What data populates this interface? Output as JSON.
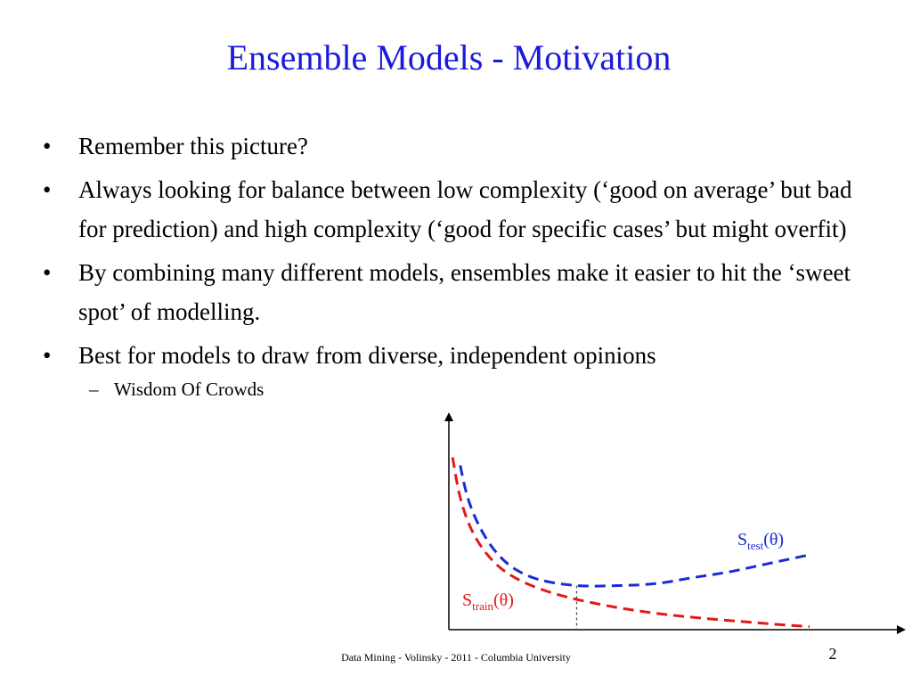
{
  "slide": {
    "title": "Ensemble Models - Motivation",
    "bullets": [
      {
        "text": "Remember this picture?"
      },
      {
        "text": "Always looking for balance between low complexity (‘good on average’ but bad for prediction) and high complexity (‘good for specific cases’ but might overfit)"
      },
      {
        "text": "By combining many different models, ensembles make it easier to hit the ‘sweet spot’ of modelling."
      },
      {
        "text": "Best for models to draw from diverse, independent opinions"
      }
    ],
    "subbullets": [
      {
        "text": "Wisdom Of Crowds"
      }
    ],
    "bullet_symbol": "•",
    "sub_symbol": "–",
    "footer": "Data Mining - Volinsky - 2011 - Columbia University",
    "page_number": "2"
  },
  "chart_data": {
    "type": "line",
    "x_range": [
      0,
      1
    ],
    "y_range": [
      0,
      1
    ],
    "series": [
      {
        "name_main": "S",
        "name_sub": "test",
        "name_arg": "(θ)",
        "color": "#1a2ad6",
        "style": "dashed",
        "x": [
          0.03,
          0.05,
          0.08,
          0.12,
          0.17,
          0.24,
          0.34,
          0.45,
          0.55,
          0.65,
          0.75,
          0.85,
          0.95
        ],
        "y": [
          0.82,
          0.66,
          0.52,
          0.4,
          0.31,
          0.25,
          0.22,
          0.22,
          0.23,
          0.26,
          0.29,
          0.33,
          0.37
        ]
      },
      {
        "name_main": "S",
        "name_sub": "train",
        "name_arg": "(θ)",
        "color": "#e01a1a",
        "style": "dashed",
        "x": [
          0.01,
          0.03,
          0.06,
          0.1,
          0.15,
          0.22,
          0.32,
          0.45,
          0.58,
          0.72,
          0.85,
          0.96
        ],
        "y": [
          0.86,
          0.66,
          0.5,
          0.38,
          0.29,
          0.22,
          0.16,
          0.11,
          0.075,
          0.05,
          0.03,
          0.015
        ]
      }
    ],
    "marker_x": 0.34,
    "marker_style": "dotted",
    "axis_color": "#000000"
  }
}
